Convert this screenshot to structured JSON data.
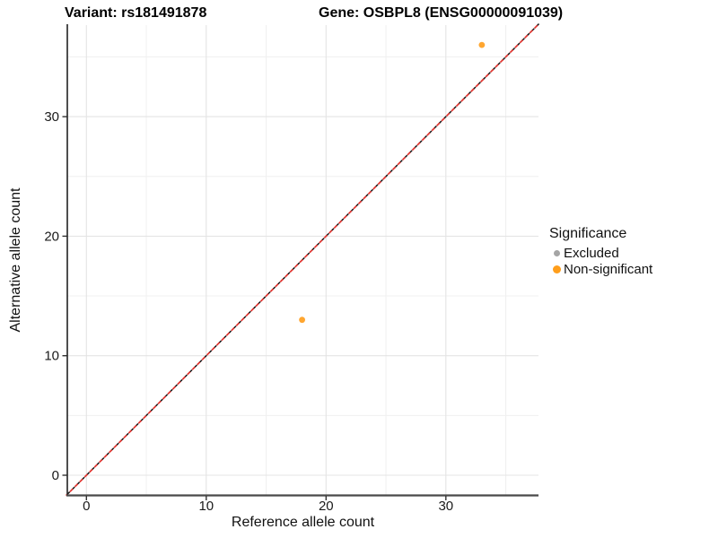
{
  "chart_data": {
    "type": "scatter",
    "titles": {
      "variant": "Variant: rs181491878",
      "gene": "Gene: OSBPL8 (ENSG00000091039)"
    },
    "xlabel": "Reference allele count",
    "ylabel": "Alternative allele count",
    "xlim": [
      -1.7,
      37.7
    ],
    "ylim": [
      -1.7,
      37.7
    ],
    "xticks": [
      0,
      10,
      20,
      30
    ],
    "yticks": [
      0,
      10,
      20,
      30
    ],
    "minor_ticks": [
      5,
      15,
      25,
      35
    ],
    "grid": "major and minor light-gray gridlines on white panel",
    "points": [
      {
        "x": 33,
        "y": 36,
        "significance": "Non-significant"
      },
      {
        "x": 18,
        "y": 13,
        "significance": "Non-significant"
      }
    ],
    "identity_line": {
      "slope": 1,
      "intercept": 0,
      "style": "dashed",
      "colors": [
        "#151515",
        "#E3342F"
      ]
    },
    "legend": {
      "title": "Significance",
      "position": "right",
      "items": [
        {
          "label": "Excluded",
          "color": "#A5A5A5",
          "dot": "small"
        },
        {
          "label": "Non-significant",
          "color": "#FF9E1B",
          "dot": "large"
        }
      ]
    },
    "colors": {
      "point_orange": "#FFA630",
      "major_grid": "#e4e4e4",
      "minor_grid": "#f0f0f0",
      "y_axis_line": "#222222",
      "x_axis_line": "#4a4a4a",
      "tick_text": "#1a1a1a"
    }
  }
}
